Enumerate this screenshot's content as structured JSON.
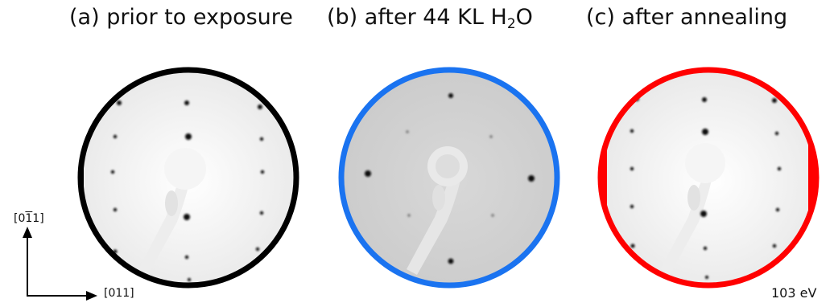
{
  "panels": [
    {
      "prefix": "(a) prior to exposure",
      "sub": "",
      "suffix": "",
      "ring_color": "#000000"
    },
    {
      "prefix": "(b) after 44 KL H",
      "sub": "2",
      "suffix": "O",
      "ring_color": "#1a73f0"
    },
    {
      "prefix": "(c) after annealing",
      "sub": "",
      "suffix": "",
      "ring_color": "#ff0000"
    }
  ],
  "axes": {
    "up_pre": "[0",
    "up_bar": "1",
    "up_post": "1]",
    "right": "[011]"
  },
  "energy": "103 eV"
}
